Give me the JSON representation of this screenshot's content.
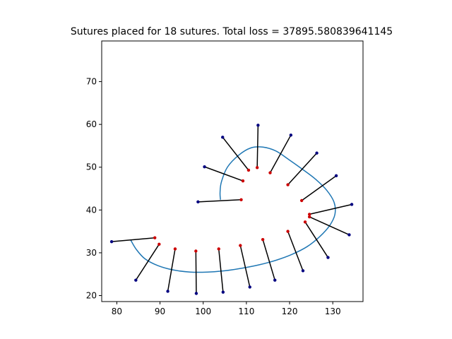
{
  "chart_data": {
    "type": "scatter",
    "title": "Sutures placed for 18 sutures. Total loss = 37895.580839641145",
    "xlabel": "",
    "ylabel": "",
    "xlim": [
      76.5,
      137.0
    ],
    "ylim": [
      18.6,
      79.5
    ],
    "xticks": [
      80,
      90,
      100,
      110,
      120,
      130
    ],
    "yticks": [
      20,
      30,
      40,
      50,
      60,
      70
    ],
    "grid": false,
    "colors": {
      "wound": "#1f77b4",
      "suture": "#000000",
      "insertion": "#cc0000",
      "extraction": "#000080"
    },
    "wound_curve": [
      [
        83.2,
        33.0
      ],
      [
        84.5,
        30.8
      ],
      [
        86.5,
        28.6
      ],
      [
        89.5,
        27.0
      ],
      [
        93.0,
        26.0
      ],
      [
        97.0,
        25.5
      ],
      [
        101.0,
        25.5
      ],
      [
        105.0,
        25.8
      ],
      [
        109.0,
        26.4
      ],
      [
        113.0,
        27.2
      ],
      [
        117.0,
        28.3
      ],
      [
        120.5,
        29.6
      ],
      [
        124.0,
        31.4
      ],
      [
        127.0,
        33.8
      ],
      [
        129.3,
        36.4
      ],
      [
        130.5,
        39.0
      ],
      [
        130.3,
        41.8
      ],
      [
        128.6,
        44.6
      ],
      [
        126.0,
        47.2
      ],
      [
        123.0,
        49.5
      ],
      [
        119.8,
        51.8
      ],
      [
        116.8,
        53.8
      ],
      [
        113.8,
        54.7
      ],
      [
        111.0,
        54.5
      ],
      [
        108.2,
        52.8
      ],
      [
        105.6,
        50.0
      ],
      [
        104.2,
        46.5
      ],
      [
        103.9,
        44.0
      ],
      [
        104.0,
        42.4
      ]
    ],
    "sutures": [
      {
        "insertion": [
          88.8,
          33.5
        ],
        "extraction": [
          78.8,
          32.6
        ]
      },
      {
        "insertion": [
          89.8,
          32.0
        ],
        "extraction": [
          84.4,
          23.6
        ]
      },
      {
        "insertion": [
          93.5,
          30.9
        ],
        "extraction": [
          91.8,
          21.0
        ]
      },
      {
        "insertion": [
          98.3,
          30.4
        ],
        "extraction": [
          98.4,
          20.5
        ]
      },
      {
        "insertion": [
          103.6,
          30.9
        ],
        "extraction": [
          104.6,
          20.8
        ]
      },
      {
        "insertion": [
          108.6,
          31.7
        ],
        "extraction": [
          110.8,
          22.0
        ]
      },
      {
        "insertion": [
          113.8,
          33.1
        ],
        "extraction": [
          116.6,
          23.6
        ]
      },
      {
        "insertion": [
          119.6,
          35.0
        ],
        "extraction": [
          123.1,
          25.8
        ]
      },
      {
        "insertion": [
          123.6,
          37.2
        ],
        "extraction": [
          128.9,
          28.9
        ]
      },
      {
        "insertion": [
          124.6,
          38.4
        ],
        "extraction": [
          133.8,
          34.2
        ]
      },
      {
        "insertion": [
          124.6,
          39.0
        ],
        "extraction": [
          134.4,
          41.3
        ]
      },
      {
        "insertion": [
          122.8,
          42.2
        ],
        "extraction": [
          130.8,
          48.0
        ]
      },
      {
        "insertion": [
          119.6,
          45.9
        ],
        "extraction": [
          126.3,
          53.3
        ]
      },
      {
        "insertion": [
          115.5,
          48.7
        ],
        "extraction": [
          120.3,
          57.5
        ]
      },
      {
        "insertion": [
          112.5,
          49.9
        ],
        "extraction": [
          112.7,
          59.8
        ]
      },
      {
        "insertion": [
          110.5,
          49.3
        ],
        "extraction": [
          104.5,
          57.0
        ]
      },
      {
        "insertion": [
          109.2,
          46.8
        ],
        "extraction": [
          100.3,
          50.1
        ]
      },
      {
        "insertion": [
          108.8,
          42.4
        ],
        "extraction": [
          98.8,
          41.9
        ]
      }
    ]
  }
}
